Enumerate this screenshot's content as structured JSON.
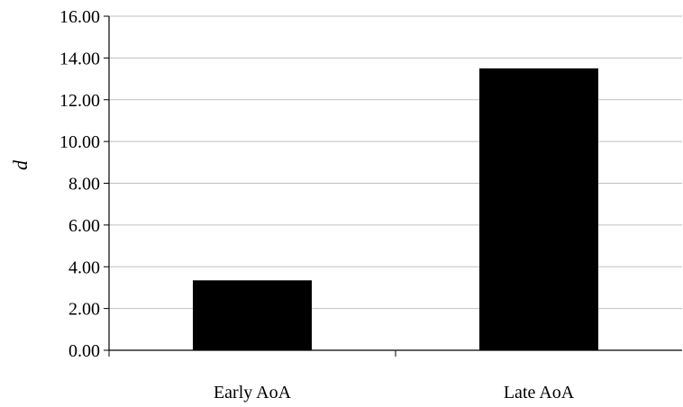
{
  "chart_data": {
    "type": "bar",
    "title": "",
    "xlabel": "",
    "ylabel": "d",
    "categories": [
      "Early AoA",
      "Late AoA"
    ],
    "values": [
      3.35,
      13.5
    ],
    "ylim": [
      0,
      16
    ],
    "yticks": [
      "0.00",
      "2.00",
      "4.00",
      "6.00",
      "8.00",
      "10.00",
      "12.00",
      "14.00",
      "16.00"
    ],
    "grid": true,
    "legend": "none",
    "colors": {
      "bar": "#000000",
      "grid": "#bfbfbf",
      "axis": "#000000"
    }
  }
}
